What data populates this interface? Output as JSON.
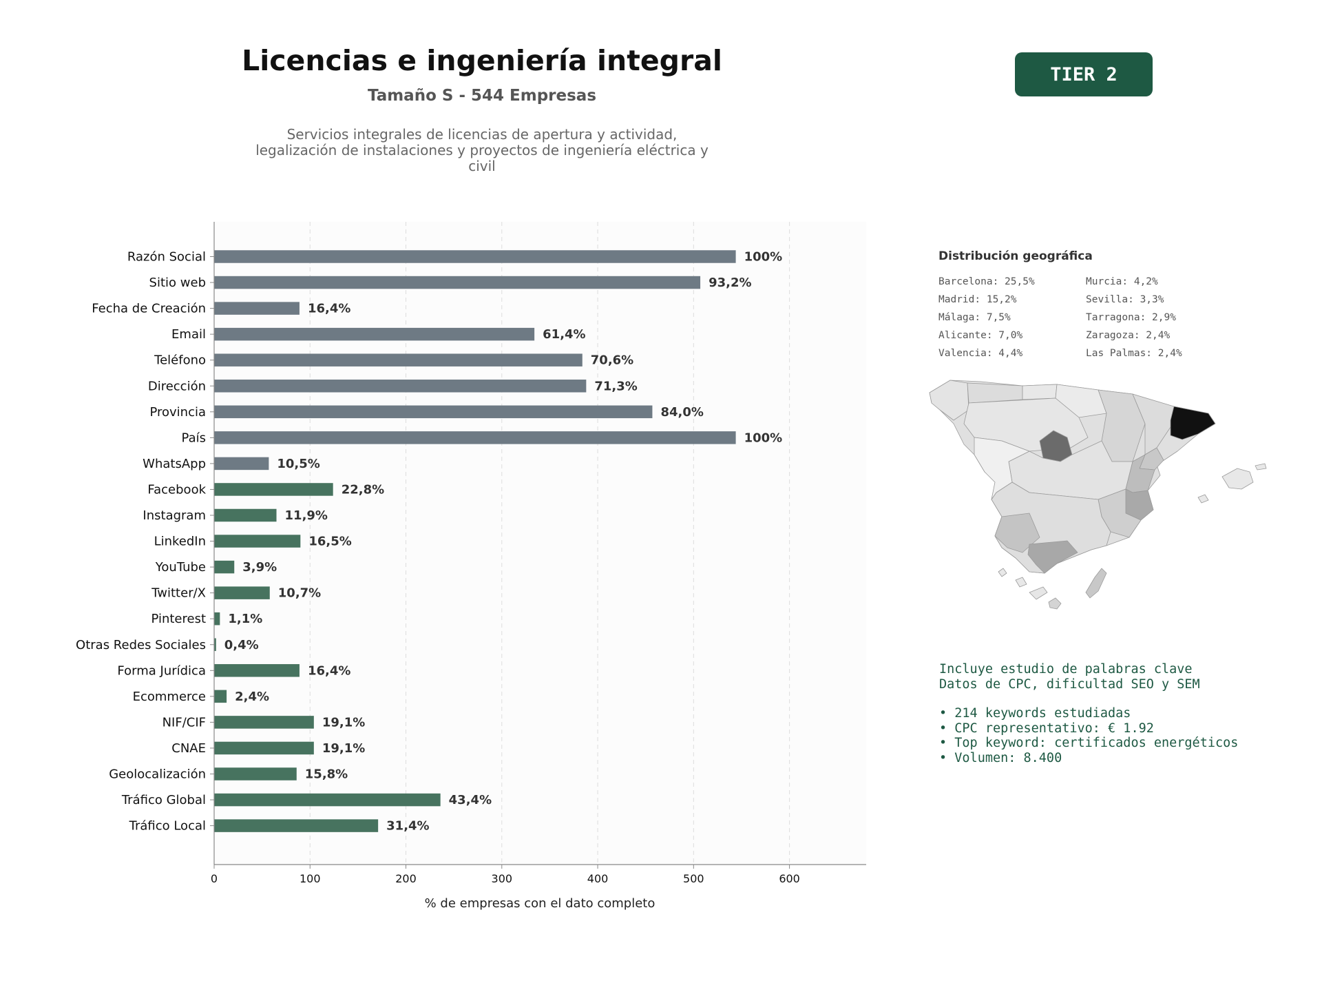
{
  "header": {
    "title": "Licencias e ingeniería integral",
    "subtitle": "Tamaño S - 544 Empresas",
    "description": "Servicios integrales de licencias de apertura y actividad, legalización de instalaciones y proyectos de ingeniería eléctrica y civil",
    "tier_badge": "TIER 2"
  },
  "colors": {
    "contact_bar": "#6e7a84",
    "extra_bar": "#47735f",
    "badge": "#1e5943",
    "keyword_text": "#1e5943",
    "map_dark": "#111111"
  },
  "chart_data": {
    "type": "bar",
    "orientation": "horizontal",
    "xlabel": "% de empresas con el dato completo",
    "xlim": [
      0,
      680
    ],
    "xticks": [
      0,
      100,
      200,
      300,
      400,
      500,
      600
    ],
    "grid": "vertical dashed",
    "categories": [
      "Razón Social",
      "Sitio web",
      "Fecha de Creación",
      "Email",
      "Teléfono",
      "Dirección",
      "Provincia",
      "País",
      "WhatsApp",
      "Facebook",
      "Instagram",
      "LinkedIn",
      "YouTube",
      "Twitter/X",
      "Pinterest",
      "Otras Redes Sociales",
      "Forma Jurídica",
      "Ecommerce",
      "NIF/CIF",
      "CNAE",
      "Geolocalización",
      "Tráfico Global",
      "Tráfico Local"
    ],
    "values": [
      544,
      507,
      89,
      334,
      384,
      388,
      457,
      544,
      57,
      124,
      65,
      90,
      21,
      58,
      6,
      2,
      89,
      13,
      104,
      104,
      86,
      236,
      171
    ],
    "labels": [
      "100%",
      "93,2%",
      "16,4%",
      "61,4%",
      "70,6%",
      "71,3%",
      "84,0%",
      "100%",
      "10,5%",
      "22,8%",
      "11,9%",
      "16,5%",
      "3,9%",
      "10,7%",
      "1,1%",
      "0,4%",
      "16,4%",
      "2,4%",
      "19,1%",
      "19,1%",
      "15,8%",
      "43,4%",
      "31,4%"
    ],
    "groups": [
      "contact",
      "contact",
      "contact",
      "contact",
      "contact",
      "contact",
      "contact",
      "contact",
      "contact",
      "extra",
      "extra",
      "extra",
      "extra",
      "extra",
      "extra",
      "extra",
      "extra",
      "extra",
      "extra",
      "extra",
      "extra",
      "extra",
      "extra"
    ]
  },
  "geo": {
    "title": "Distribución geográfica",
    "items": [
      "Barcelona: 25,5%",
      "Murcia: 4,2%",
      "Madrid: 15,2%",
      "Sevilla: 3,3%",
      "Málaga: 7,5%",
      "Tarragona: 2,9%",
      "Alicante: 7,0%",
      "Zaragoza: 2,4%",
      "Valencia: 4,4%",
      "Las Palmas: 2,4%"
    ]
  },
  "keywords": {
    "line1": "Incluye estudio de palabras clave",
    "line2": "Datos de CPC, dificultad SEO y SEM",
    "bullet1": "• 214 keywords estudiadas",
    "bullet2": "• CPC representativo: € 1.92",
    "bullet3": "• Top keyword: certificados energéticos",
    "bullet4": "• Volumen: 8.400"
  }
}
